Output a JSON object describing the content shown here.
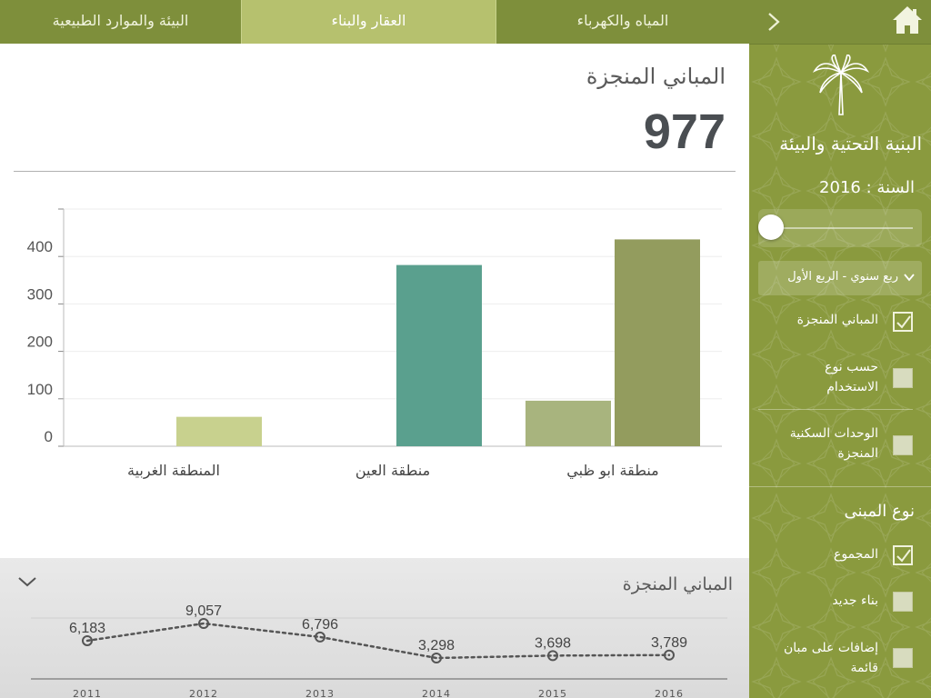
{
  "tabs": [
    {
      "label": "البيئة والموارد الطبيعية",
      "active": false
    },
    {
      "label": "العقار والبناء",
      "active": true
    },
    {
      "label": "المياه والكهرباء",
      "active": false
    }
  ],
  "main": {
    "title": "المباني المنجزة",
    "big_number": "977"
  },
  "trend": {
    "title": "المباني المنجزة"
  },
  "sidebar": {
    "heading": "البنية التحتية والبيئة",
    "year_label": "السنة : 2016",
    "period_select": "ربع سنوي - الربع الأول",
    "options": [
      {
        "label": "المباني المنجزة",
        "checked": true
      },
      {
        "label": "حسب نوع الاستخدام",
        "checked": false
      },
      {
        "label": "الوحدات السكنية المنجزة",
        "checked": false
      }
    ],
    "building_type_heading": "نوع المبنى",
    "building_types": [
      {
        "label": "المجموع",
        "checked": true
      },
      {
        "label": "بناء جديد",
        "checked": false
      },
      {
        "label": "إضافات على مبان قائمة",
        "checked": false
      }
    ]
  },
  "chart_data": [
    {
      "type": "bar",
      "categories": [
        "المنطقة الغربية",
        "منطقة العين",
        "منطقة ابو ظبي"
      ],
      "series": [
        {
          "color": "#a8b47e",
          "values": [
            0,
            0,
            96
          ]
        },
        {
          "color": "#c8d18e",
          "values": [
            62,
            0,
            0
          ]
        },
        {
          "color": "#5aa08e",
          "values": [
            0,
            382,
            0
          ]
        },
        {
          "color": "#939c5e",
          "values": [
            0,
            0,
            436
          ]
        }
      ],
      "yticks": [
        "0",
        "100",
        "200",
        "300",
        "400"
      ],
      "ylim": [
        0,
        500
      ],
      "grid": true
    },
    {
      "type": "line",
      "x": [
        "2011",
        "2012",
        "2013",
        "2014",
        "2015",
        "2016"
      ],
      "values": [
        6183,
        9057,
        6796,
        3298,
        3698,
        3789
      ],
      "labels": [
        "6,183",
        "9,057",
        "6,796",
        "3,298",
        "3,698",
        "3,789"
      ]
    }
  ],
  "colors": {
    "sidebar": "#8a9a3e",
    "tab_bar": "#7e8f3b",
    "tab_active": "#b6c16e"
  }
}
